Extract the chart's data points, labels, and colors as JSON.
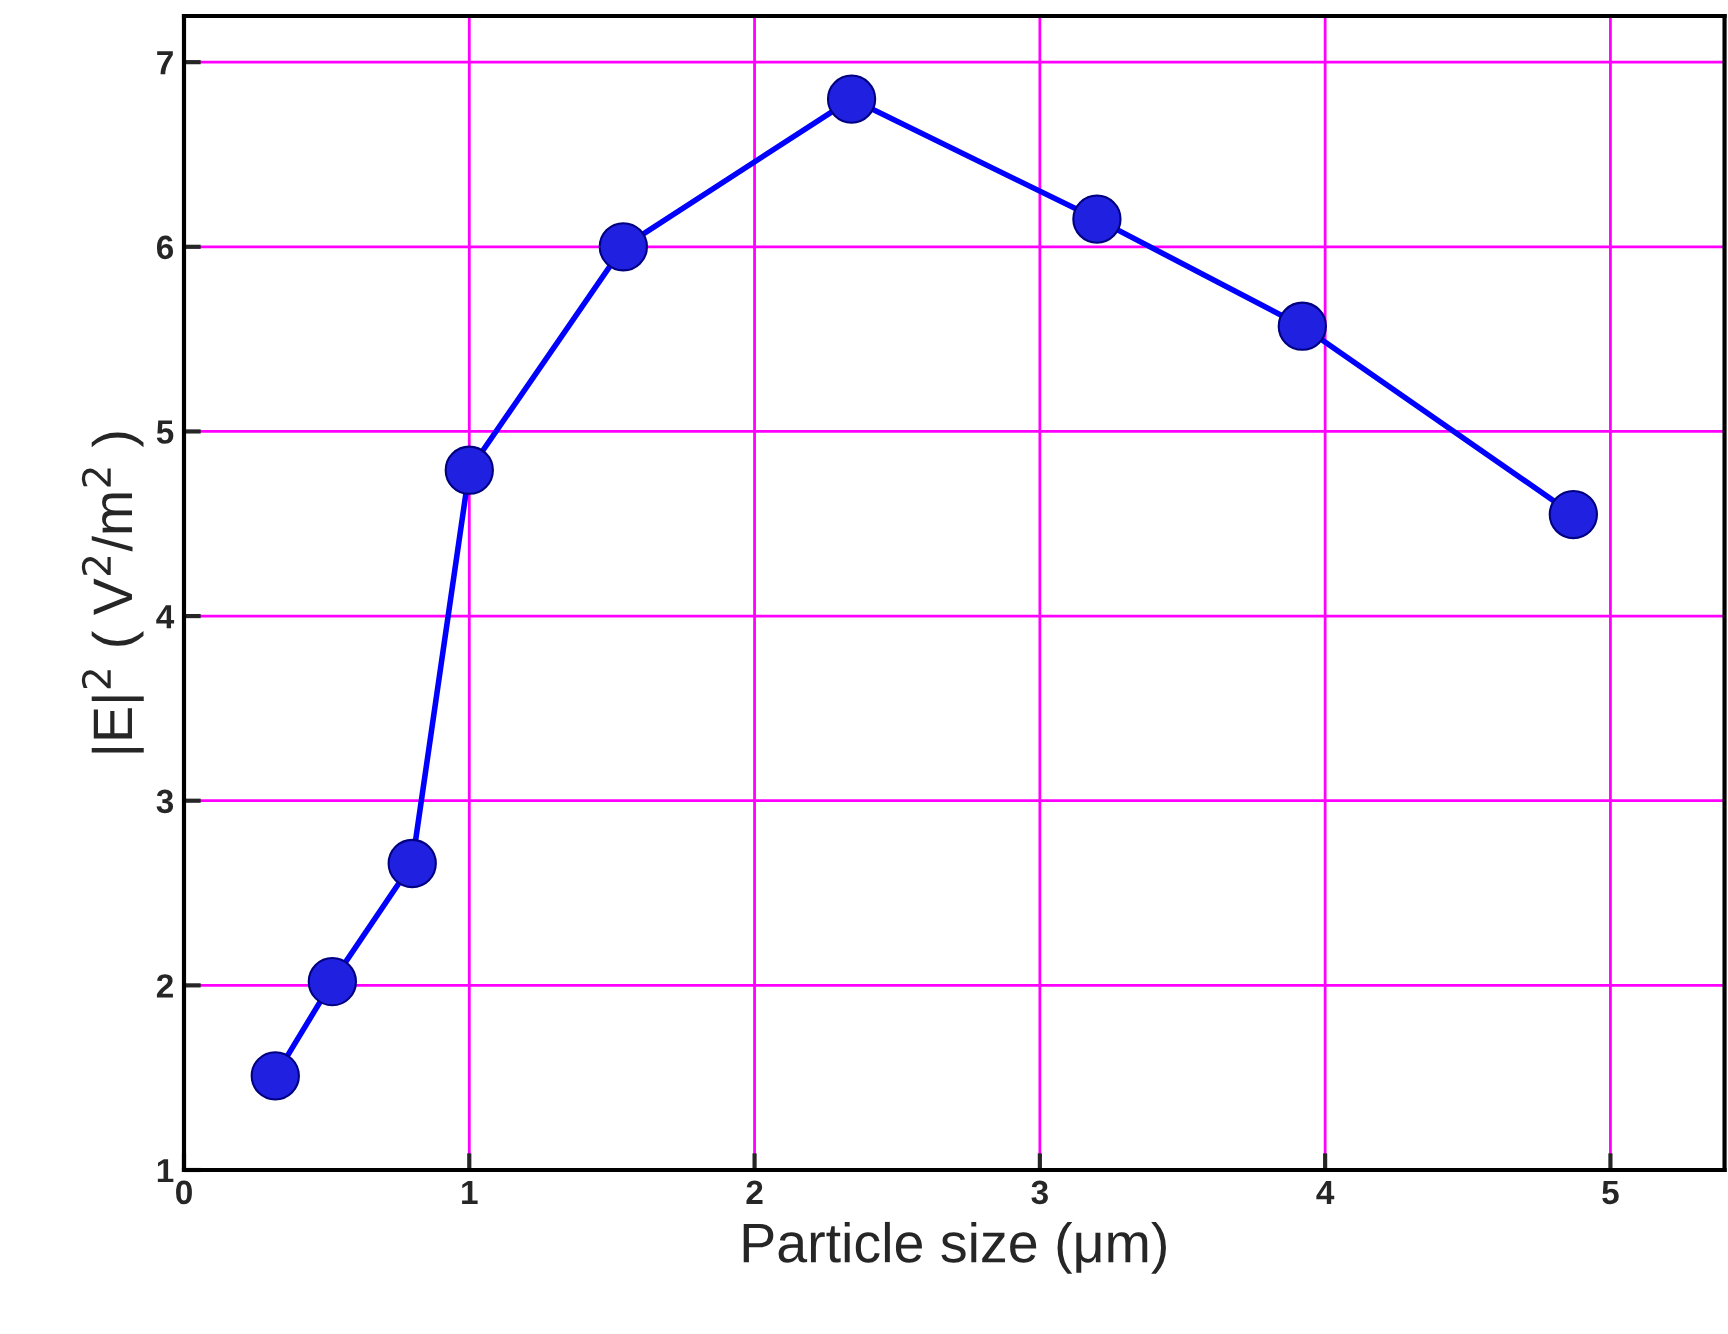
{
  "chart_data": {
    "type": "line",
    "xlabel": "Particle size (μm)",
    "ylabel": "|E|$^{2}$ ( V$^{2}$/m$^{2}$ )",
    "x": [
      0.32,
      0.52,
      0.8,
      1.0,
      1.54,
      2.34,
      3.2,
      3.92,
      4.87
    ],
    "series": [
      {
        "color": "#0000ff",
        "values": [
          1.51,
          2.02,
          2.66,
          4.79,
          6.0,
          6.8,
          6.15,
          5.57,
          4.55
        ]
      }
    ],
    "xlim": [
      0,
      5.4
    ],
    "ylim": [
      1,
      7.25
    ],
    "xticks": [
      0,
      1,
      2,
      3,
      4,
      5
    ],
    "yticks": [
      1,
      2,
      3,
      4,
      5,
      6,
      7
    ],
    "grid": true,
    "marker": "circle",
    "line_style": "solid"
  }
}
